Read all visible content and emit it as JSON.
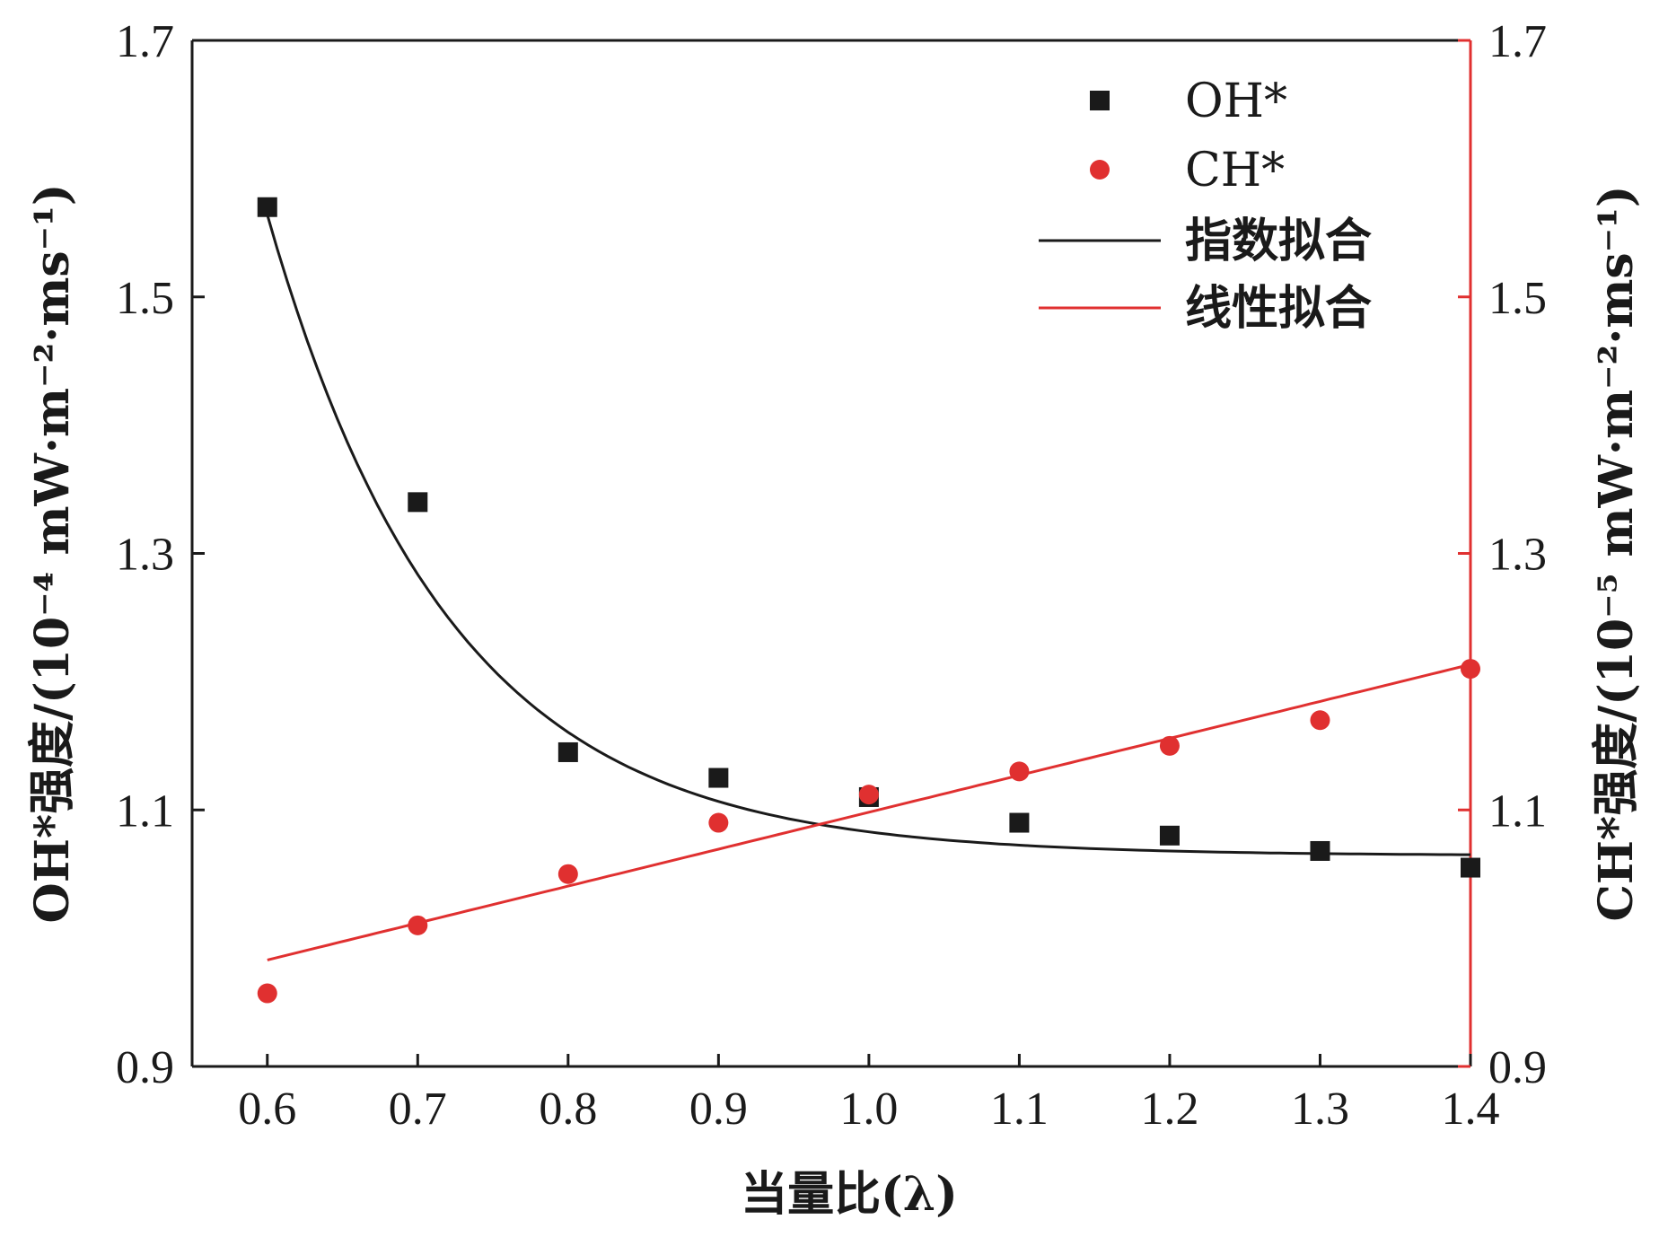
{
  "chart_data": {
    "type": "scatter",
    "x_axis": {
      "label": "当量比(λ)",
      "ticks": [
        "0.6",
        "0.7",
        "0.8",
        "0.9",
        "1.0",
        "1.1",
        "1.2",
        "1.3",
        "1.4"
      ],
      "range": [
        0.55,
        1.4
      ]
    },
    "y_axis_left": {
      "label": "OH*强度/(10⁻⁴ mW·m⁻²·ms⁻¹)",
      "ticks": [
        "0.9",
        "1.1",
        "1.3",
        "1.5",
        "1.7"
      ],
      "range": [
        0.9,
        1.7
      ],
      "color": "#1a1a1a"
    },
    "y_axis_right": {
      "label": "CH*强度/(10⁻⁵ mW·m⁻²·ms⁻¹)",
      "ticks": [
        "0.9",
        "1.1",
        "1.3",
        "1.5",
        "1.7"
      ],
      "range": [
        0.9,
        1.7
      ],
      "color": "#e03030"
    },
    "x": [
      0.6,
      0.7,
      0.8,
      0.9,
      1.0,
      1.1,
      1.2,
      1.3,
      1.4
    ],
    "series": [
      {
        "name": "OH*",
        "axis": "left",
        "marker": "square",
        "color": "#1a1a1a",
        "values": [
          1.57,
          1.34,
          1.145,
          1.125,
          1.11,
          1.09,
          1.08,
          1.068,
          1.055
        ]
      },
      {
        "name": "CH*",
        "axis": "right",
        "marker": "circle",
        "color": "#e03030",
        "values": [
          0.957,
          1.01,
          1.05,
          1.09,
          1.112,
          1.13,
          1.15,
          1.17,
          1.21
        ]
      }
    ],
    "fits": [
      {
        "name": "指数拟合",
        "kind": "exponential",
        "color": "#1a1a1a",
        "x_range": [
          0.6,
          1.4
        ],
        "y0": 1.0644,
        "A": 0.4996,
        "x0": 0.6,
        "t": 0.1214
      },
      {
        "name": "线性拟合",
        "kind": "linear",
        "color": "#e03030",
        "x_range": [
          0.6,
          1.4
        ],
        "slope": 0.288,
        "intercept": 0.8102
      }
    ],
    "legend_position": "top-right"
  }
}
